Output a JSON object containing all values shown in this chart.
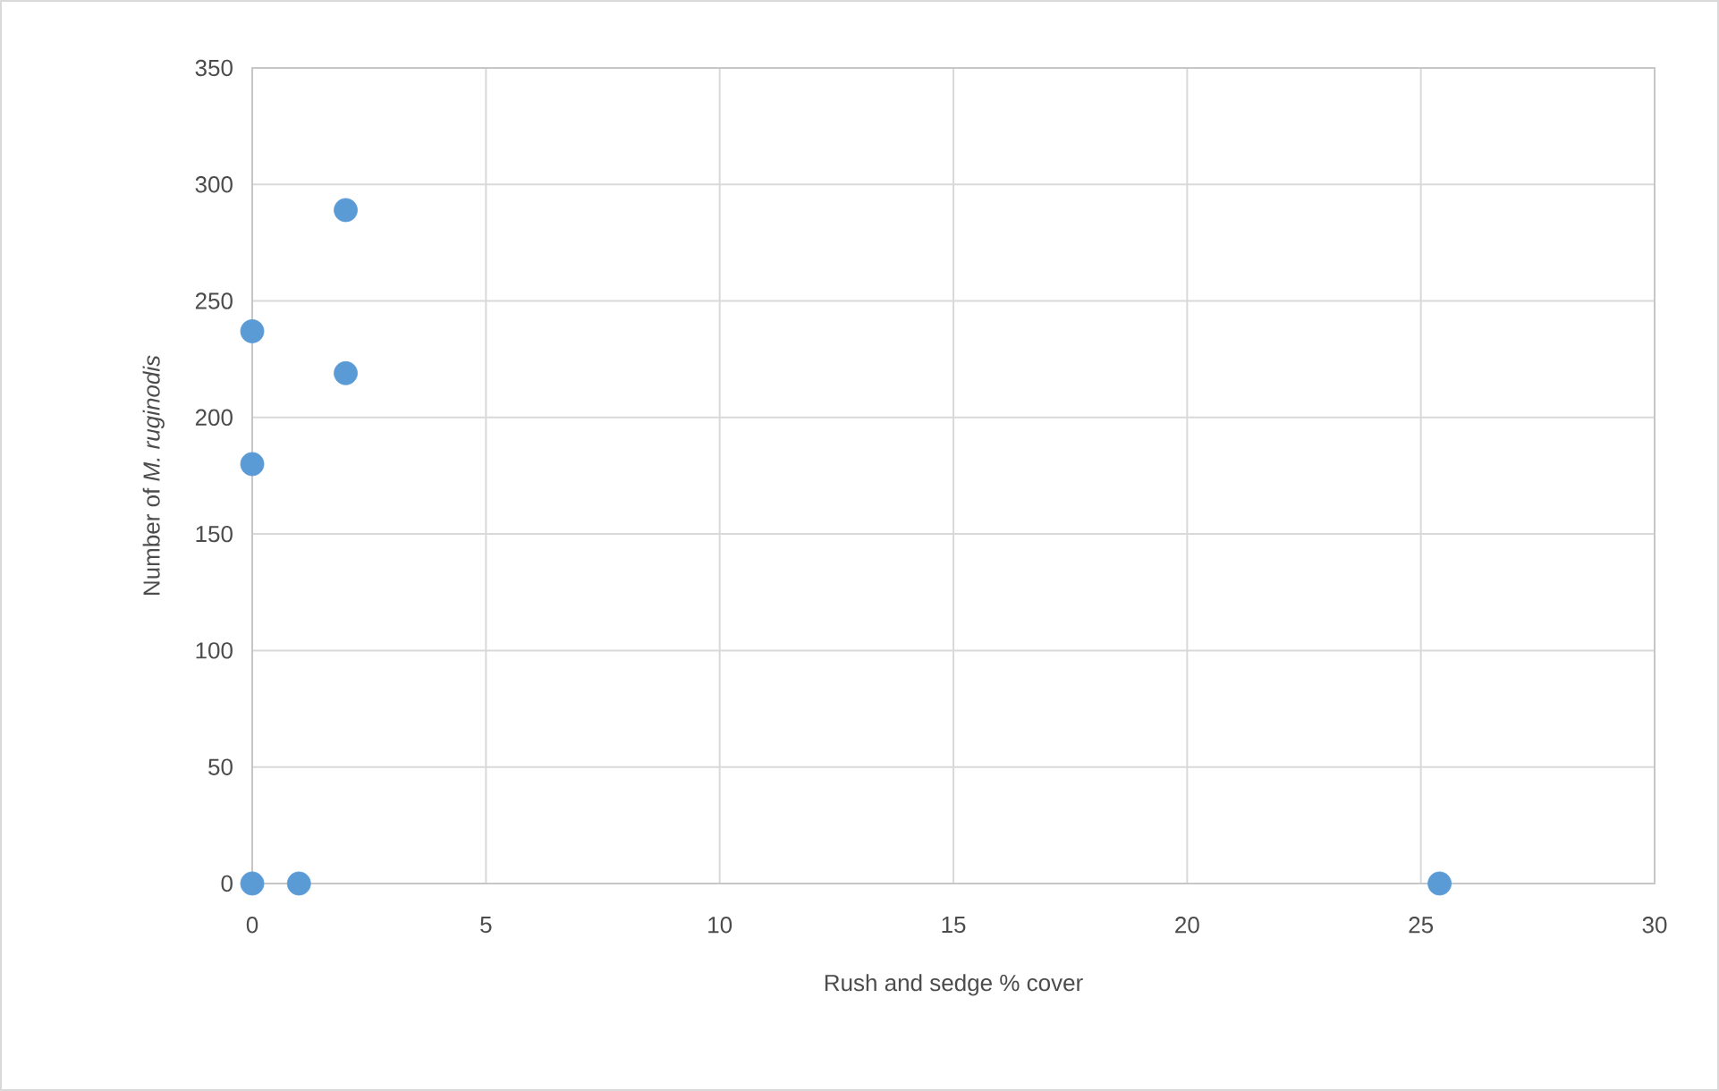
{
  "chart_data": {
    "type": "scatter",
    "xlabel": "Rush and sedge % cover",
    "ylabel": "Number of *M. ruginodis*",
    "x": [
      0,
      0,
      2,
      2,
      0,
      1,
      25.4
    ],
    "series": [
      {
        "color": "#5b9bd5",
        "values": [
          237,
          180,
          289,
          219,
          0,
          0,
          0
        ]
      }
    ],
    "xlim": [
      0,
      30
    ],
    "xticks": [
      0,
      5,
      10,
      15,
      20,
      25,
      30
    ],
    "ylim": [
      0,
      350
    ],
    "yticks": [
      0,
      50,
      100,
      150,
      200,
      250,
      300,
      350
    ],
    "grid": true
  }
}
